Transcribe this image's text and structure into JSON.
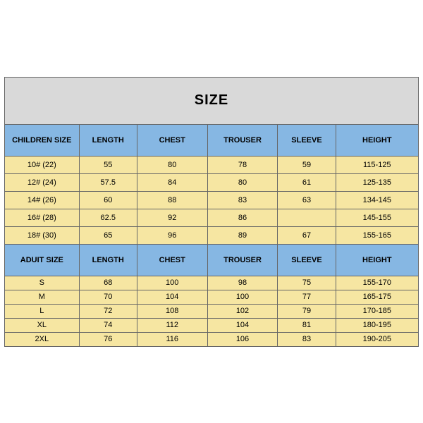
{
  "title": "SIZE",
  "colors": {
    "blue": "#86b7e3",
    "cream": "#f6e6a2",
    "title_bg": "#d9d9d9",
    "border": "#666666"
  },
  "columns_child": [
    "CHILDREN SIZE",
    "LENGTH",
    "CHEST",
    "TROUSER",
    "SLEEVE",
    "HEIGHT"
  ],
  "columns_adult": [
    "ADUIT SIZE",
    "LENGTH",
    "CHEST",
    "TROUSER",
    "SLEEVE",
    "HEIGHT"
  ],
  "child_rows": [
    [
      "10#  (22)",
      "55",
      "80",
      "78",
      "59",
      "115-125"
    ],
    [
      "12#  (24)",
      "57.5",
      "84",
      "80",
      "61",
      "125-135"
    ],
    [
      "14#  (26)",
      "60",
      "88",
      "83",
      "63",
      "134-145"
    ],
    [
      "16#  (28)",
      "62.5",
      "92",
      "86",
      "",
      "145-155"
    ],
    [
      "18#  (30)",
      "65",
      "96",
      "89",
      "67",
      "155-165"
    ]
  ],
  "adult_rows": [
    [
      "S",
      "68",
      "100",
      "98",
      "75",
      "155-170"
    ],
    [
      "M",
      "70",
      "104",
      "100",
      "77",
      "165-175"
    ],
    [
      "L",
      "72",
      "108",
      "102",
      "79",
      "170-185"
    ],
    [
      "XL",
      "74",
      "112",
      "104",
      "81",
      "180-195"
    ],
    [
      "2XL",
      "76",
      "116",
      "106",
      "83",
      "190-205"
    ]
  ],
  "col_widths_pct": [
    18,
    14,
    17,
    17,
    14,
    20
  ]
}
